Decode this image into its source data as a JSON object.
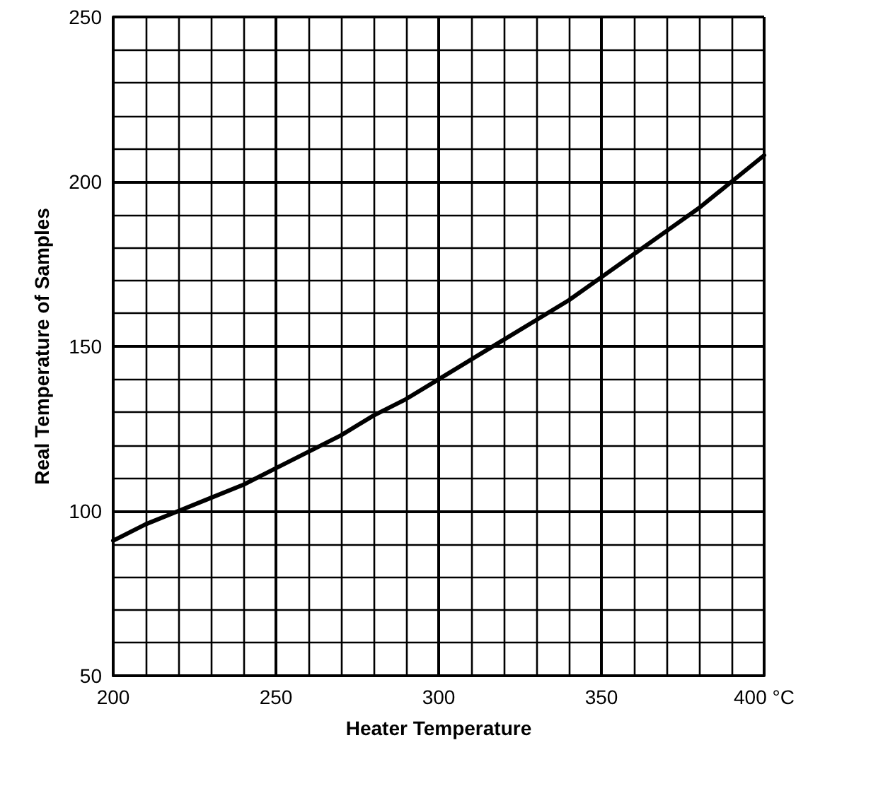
{
  "chart_data": {
    "type": "line",
    "xlabel": "Heater Temperature",
    "ylabel": "Real Temperature of Samples",
    "x": [
      200,
      210,
      220,
      230,
      240,
      250,
      260,
      270,
      280,
      290,
      300,
      310,
      320,
      330,
      340,
      350,
      360,
      370,
      380,
      390,
      400
    ],
    "series": [
      {
        "color": "#000000",
        "values": [
          91,
          96,
          100,
          104,
          108,
          113,
          118,
          123,
          129,
          134,
          140,
          146,
          152,
          158,
          164,
          171,
          178,
          185,
          192,
          200,
          208
        ]
      }
    ],
    "xlim": [
      200,
      400
    ],
    "xticks": [
      200,
      250,
      300,
      350,
      {
        "value": 400,
        "label": "400 °C"
      }
    ],
    "ylim": [
      50,
      250
    ],
    "yticks": [
      50,
      100,
      150,
      200,
      250
    ],
    "grid": true,
    "marker": "none",
    "line_style": "solid"
  }
}
